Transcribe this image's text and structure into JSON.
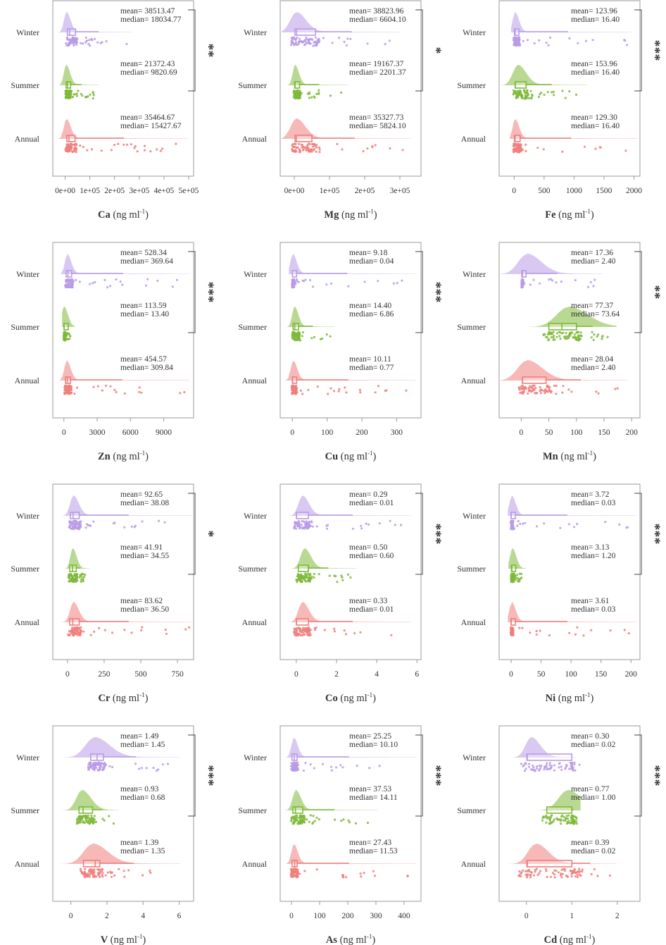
{
  "colors": {
    "Winter": "#b99be6",
    "Summer": "#7fb93a",
    "Annual": "#ee7f7d",
    "frame": "#9a9a9a",
    "text": "#333333"
  },
  "chart_data": [
    {
      "type": "raincloud",
      "element": "Ca",
      "xlabel": "Ca",
      "unit": "(ng ml-1)",
      "xlim": [
        -50000,
        520000
      ],
      "ticks": [
        0,
        100000,
        200000,
        300000,
        400000,
        500000
      ],
      "tick_labels": [
        "0e+00",
        "1e+05",
        "2e+05",
        "3e+05",
        "4e+05",
        "5e+05"
      ],
      "significance": "**",
      "series": [
        {
          "name": "Winter",
          "mean": "38513.47",
          "median": "18034.77",
          "q1": 9000,
          "q3": 42000,
          "max": 250000,
          "peak": 5000,
          "bw": 18000
        },
        {
          "name": "Summer",
          "mean": "21372.43",
          "median": "9820.69",
          "q1": 4000,
          "q3": 22000,
          "max": 120000,
          "peak": 4000,
          "bw": 12000
        },
        {
          "name": "Annual",
          "mean": "35464.67",
          "median": "15427.67",
          "q1": 7000,
          "q3": 40000,
          "max": 480000,
          "peak": 5000,
          "bw": 18000
        }
      ]
    },
    {
      "type": "raincloud",
      "element": "Mg",
      "xlabel": "Mg",
      "unit": "(ng ml-1)",
      "xlim": [
        -40000,
        360000
      ],
      "ticks": [
        0,
        100000,
        200000,
        300000
      ],
      "tick_labels": [
        "0e+00",
        "1e+05",
        "2e+05",
        "3e+05"
      ],
      "significance": "*",
      "series": [
        {
          "name": "Winter",
          "mean": "38823.96",
          "median": "6604.10",
          "q1": 2000,
          "q3": 60000,
          "max": 290000,
          "peak": 5000,
          "bw": 30000
        },
        {
          "name": "Summer",
          "mean": "19167.37",
          "median": "2201.37",
          "q1": 1000,
          "q3": 15000,
          "max": 140000,
          "peak": 2000,
          "bw": 12000
        },
        {
          "name": "Annual",
          "mean": "35327.73",
          "median": "5824.10",
          "q1": 2000,
          "q3": 50000,
          "max": 320000,
          "peak": 5000,
          "bw": 28000
        }
      ]
    },
    {
      "type": "raincloud",
      "element": "Fe",
      "xlabel": "Fe",
      "unit": "(ng ml-1)",
      "xlim": [
        -250,
        2100
      ],
      "ticks": [
        0,
        500,
        1000,
        1500,
        2000
      ],
      "tick_labels": [
        "0",
        "500",
        "1000",
        "1500",
        "2000"
      ],
      "significance": "***",
      "series": [
        {
          "name": "Winter",
          "mean": "123.96",
          "median": "16.40",
          "q1": 5,
          "q3": 80,
          "max": 1900,
          "peak": 15,
          "bw": 30
        },
        {
          "name": "Summer",
          "mean": "153.96",
          "median": "16.40",
          "q1": 20,
          "q3": 200,
          "max": 1150,
          "peak": 60,
          "bw": 150
        },
        {
          "name": "Annual",
          "mean": "129.30",
          "median": "16.40",
          "q1": 5,
          "q3": 100,
          "max": 2000,
          "peak": 15,
          "bw": 40
        }
      ]
    },
    {
      "type": "raincloud",
      "element": "Zn",
      "xlabel": "Zn",
      "unit": "(ng ml-1)",
      "xlim": [
        -1000,
        11700
      ],
      "ticks": [
        0,
        3000,
        6000,
        9000
      ],
      "tick_labels": [
        "0",
        "3000",
        "6000",
        "9000"
      ],
      "significance": "***",
      "series": [
        {
          "name": "Winter",
          "mean": "528.34",
          "median": "369.64",
          "q1": 200,
          "q3": 700,
          "max": 11000,
          "peak": 300,
          "bw": 250
        },
        {
          "name": "Summer",
          "mean": "113.59",
          "median": "13.40",
          "q1": 5,
          "q3": 100,
          "max": 600,
          "peak": 10,
          "bw": 80
        },
        {
          "name": "Annual",
          "mean": "454.57",
          "median": "309.84",
          "q1": 150,
          "q3": 600,
          "max": 11000,
          "peak": 250,
          "bw": 350
        }
      ]
    },
    {
      "type": "raincloud",
      "element": "Cu",
      "xlabel": "Cu",
      "unit": "(ng ml-1)",
      "xlim": [
        -35,
        370
      ],
      "ticks": [
        0,
        100,
        200,
        300
      ],
      "tick_labels": [
        "0",
        "100",
        "200",
        "300"
      ],
      "significance": "***",
      "series": [
        {
          "name": "Winter",
          "mean": "9.18",
          "median": "0.04",
          "q1": 0.01,
          "q3": 5,
          "max": 345,
          "peak": 1,
          "bw": 5
        },
        {
          "name": "Summer",
          "mean": "14.40",
          "median": "6.86",
          "q1": 2,
          "q3": 18,
          "max": 110,
          "peak": 6,
          "bw": 10
        },
        {
          "name": "Annual",
          "mean": "10.11",
          "median": "0.77",
          "q1": 0.1,
          "q3": 10,
          "max": 345,
          "peak": 2,
          "bw": 12
        }
      ]
    },
    {
      "type": "raincloud",
      "element": "Mn",
      "xlabel": "Mn",
      "unit": "(ng ml-1)",
      "xlim": [
        -40,
        215
      ],
      "ticks": [
        0,
        50,
        100,
        150,
        200
      ],
      "tick_labels": [
        "0",
        "50",
        "100",
        "150",
        "200"
      ],
      "significance": "**",
      "series": [
        {
          "name": "Winter",
          "mean": "17.36",
          "median": "2.40",
          "q1": 1,
          "q3": 3,
          "max": 140,
          "peak": 10,
          "bw": 28
        },
        {
          "name": "Summer",
          "mean": "77.37",
          "median": "73.64",
          "q1": 50,
          "q3": 100,
          "max": 165,
          "peak": 85,
          "bw": 38
        },
        {
          "name": "Annual",
          "mean": "28.04",
          "median": "2.40",
          "q1": 2,
          "q3": 45,
          "max": 185,
          "peak": 10,
          "bw": 30
        }
      ]
    },
    {
      "type": "raincloud",
      "element": "Cr",
      "xlabel": "Cr",
      "unit": "(ng ml-1)",
      "xlim": [
        -100,
        860
      ],
      "ticks": [
        0,
        250,
        500,
        750
      ],
      "tick_labels": [
        "0",
        "250",
        "500",
        "750"
      ],
      "significance": "*",
      "series": [
        {
          "name": "Winter",
          "mean": "92.65",
          "median": "38.08",
          "q1": 20,
          "q3": 80,
          "max": 830,
          "peak": 40,
          "bw": 40
        },
        {
          "name": "Summer",
          "mean": "41.91",
          "median": "34.55",
          "q1": 15,
          "q3": 60,
          "max": 120,
          "peak": 35,
          "bw": 28
        },
        {
          "name": "Annual",
          "mean": "83.62",
          "median": "36.50",
          "q1": 15,
          "q3": 80,
          "max": 830,
          "peak": 40,
          "bw": 40
        }
      ]
    },
    {
      "type": "raincloud",
      "element": "Co",
      "xlabel": "Co",
      "unit": "(ng ml-1)",
      "xlim": [
        -0.8,
        6.2
      ],
      "ticks": [
        0,
        2,
        4,
        6
      ],
      "tick_labels": [
        "0",
        "2",
        "4",
        "6"
      ],
      "significance": "***",
      "series": [
        {
          "name": "Winter",
          "mean": "0.29",
          "median": "0.01",
          "q1": 0.01,
          "q3": 0.6,
          "max": 5.5,
          "peak": 0.3,
          "bw": 0.35
        },
        {
          "name": "Summer",
          "mean": "0.50",
          "median": "0.60",
          "q1": 0.1,
          "q3": 0.6,
          "max": 2.8,
          "peak": 0.4,
          "bw": 0.35
        },
        {
          "name": "Annual",
          "mean": "0.33",
          "median": "0.01",
          "q1": 0.01,
          "q3": 0.6,
          "max": 5.5,
          "peak": 0.3,
          "bw": 0.35
        }
      ]
    },
    {
      "type": "raincloud",
      "element": "Ni",
      "xlabel": "Ni",
      "unit": "(ng ml-1)",
      "xlim": [
        -20,
        215
      ],
      "ticks": [
        0,
        50,
        100,
        150,
        200
      ],
      "tick_labels": [
        "0",
        "50",
        "100",
        "150",
        "200"
      ],
      "significance": "***",
      "series": [
        {
          "name": "Winter",
          "mean": "3.72",
          "median": "0.03",
          "q1": 0.01,
          "q3": 3,
          "max": 205,
          "peak": 1,
          "bw": 3
        },
        {
          "name": "Summer",
          "mean": "3.13",
          "median": "1.20",
          "q1": 0.5,
          "q3": 4,
          "max": 18,
          "peak": 2,
          "bw": 3
        },
        {
          "name": "Annual",
          "mean": "3.61",
          "median": "0.03",
          "q1": 0.01,
          "q3": 3,
          "max": 205,
          "peak": 1,
          "bw": 3
        }
      ]
    },
    {
      "type": "raincloud",
      "element": "V",
      "xlabel": "V",
      "unit": "(ng ml-1)",
      "xlim": [
        -1.0,
        6.8
      ],
      "ticks": [
        0,
        2,
        4,
        6
      ],
      "tick_labels": [
        "0",
        "2",
        "4",
        "6"
      ],
      "significance": "***",
      "series": [
        {
          "name": "Winter",
          "mean": "1.49",
          "median": "1.45",
          "q1": 1.1,
          "q3": 1.8,
          "max": 5.8,
          "peak": 1.3,
          "bw": 0.9
        },
        {
          "name": "Summer",
          "mean": "0.93",
          "median": "0.68",
          "q1": 0.45,
          "q3": 1.2,
          "max": 2.4,
          "peak": 0.6,
          "bw": 0.55
        },
        {
          "name": "Annual",
          "mean": "1.39",
          "median": "1.35",
          "q1": 0.7,
          "q3": 1.6,
          "max": 5.8,
          "peak": 1.2,
          "bw": 0.9
        }
      ]
    },
    {
      "type": "raincloud",
      "element": "As",
      "xlabel": "As",
      "unit": "(ng ml-1)",
      "xlim": [
        -40,
        460
      ],
      "ticks": [
        0,
        100,
        200,
        300,
        400
      ],
      "tick_labels": [
        "0",
        "100",
        "200",
        "300",
        "400"
      ],
      "significance": "***",
      "series": [
        {
          "name": "Winter",
          "mean": "25.25",
          "median": "10.10",
          "q1": 2,
          "q3": 20,
          "max": 430,
          "peak": 8,
          "bw": 15
        },
        {
          "name": "Summer",
          "mean": "37.53",
          "median": "14.11",
          "q1": 5,
          "q3": 40,
          "max": 290,
          "peak": 15,
          "bw": 20
        },
        {
          "name": "Annual",
          "mean": "27.43",
          "median": "11.53",
          "q1": 2,
          "q3": 20,
          "max": 430,
          "peak": 8,
          "bw": 15
        }
      ]
    },
    {
      "type": "raincloud",
      "element": "Cd",
      "xlabel": "Cd",
      "unit": "(ng ml-1)",
      "xlim": [
        -0.6,
        2.5
      ],
      "ticks": [
        0,
        1,
        2
      ],
      "tick_labels": [
        "0",
        "1",
        "2"
      ],
      "significance": "***",
      "series": [
        {
          "name": "Winter",
          "mean": "0.30",
          "median": "0.02",
          "q1": 0.01,
          "q3": 1.0,
          "max": 1.0,
          "peak": 0.1,
          "bw": 0.22
        },
        {
          "name": "Summer",
          "mean": "0.77",
          "median": "1.00",
          "q1": 0.45,
          "q3": 1.0,
          "max": 1.1,
          "peak": 0.9,
          "bw": 0.35
        },
        {
          "name": "Annual",
          "mean": "0.39",
          "median": "0.02",
          "q1": 0.01,
          "q3": 1.0,
          "max": 1.9,
          "peak": 0.2,
          "bw": 0.3
        }
      ]
    }
  ]
}
